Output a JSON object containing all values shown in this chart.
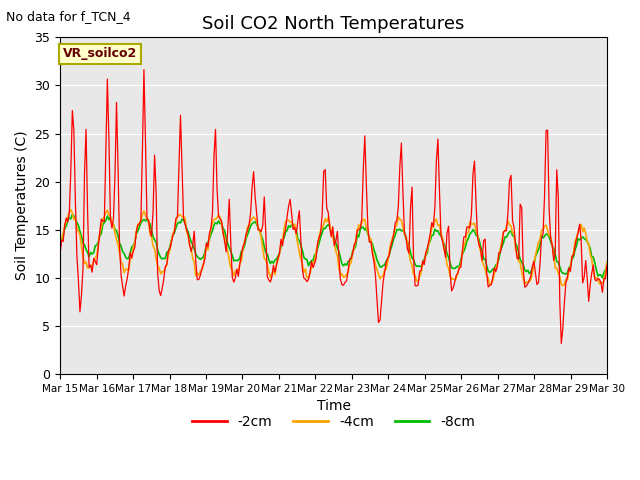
{
  "title": "Soil CO2 North Temperatures",
  "ylabel": "Soil Temperatures (C)",
  "xlabel": "Time",
  "note": "No data for f_TCN_4",
  "legend_label": "VR_soilco2",
  "ylim": [
    0,
    35
  ],
  "yticks": [
    0,
    5,
    10,
    15,
    20,
    25,
    30,
    35
  ],
  "xtick_labels": [
    "Mar 15",
    "Mar 16",
    "Mar 17",
    "Mar 18",
    "Mar 19",
    "Mar 20",
    "Mar 21",
    "Mar 22",
    "Mar 23",
    "Mar 24",
    "Mar 25",
    "Mar 26",
    "Mar 27",
    "Mar 28",
    "Mar 29",
    "Mar 30"
  ],
  "line_colors": [
    "#ff0000",
    "#ffa500",
    "#00bb00"
  ],
  "line_labels": [
    "-2cm",
    "-4cm",
    "-8cm"
  ],
  "background_color": "#e8e8e8",
  "title_fontsize": 13,
  "axis_fontsize": 10,
  "tick_fontsize": 9,
  "legend_fontsize": 10,
  "note_fontsize": 9
}
